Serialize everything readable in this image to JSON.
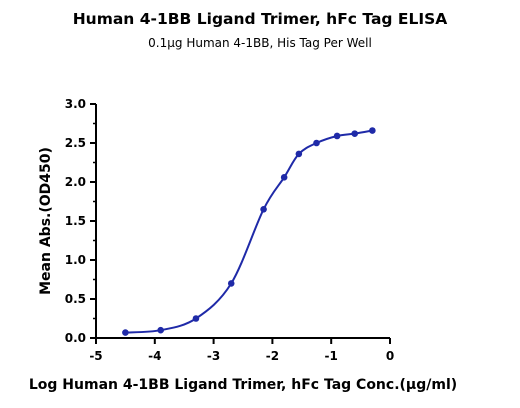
{
  "chart_data": {
    "type": "line",
    "title": "Human 4-1BB Ligand Trimer, hFc Tag ELISA",
    "subtitle": "0.1μg Human 4-1BB, His Tag Per Well",
    "xlabel": "Log Human 4-1BB Ligand Trimer, hFc Tag Conc.(μg/ml)",
    "ylabel": "Mean Abs.(OD450)",
    "xlim": [
      -5,
      0
    ],
    "ylim": [
      0,
      3.0
    ],
    "x_ticks": [
      "-5",
      "-4",
      "-3",
      "-2",
      "-1",
      "0"
    ],
    "y_ticks": [
      "0.0",
      "0.5",
      "1.0",
      "1.5",
      "2.0",
      "2.5",
      "3.0"
    ],
    "grid": false,
    "series": [
      {
        "color": "#1f2aa8",
        "x": [
          -4.5,
          -3.9,
          -3.3,
          -2.7,
          -2.15,
          -1.8,
          -1.55,
          -1.25,
          -0.9,
          -0.6,
          -0.3
        ],
        "y": [
          0.07,
          0.1,
          0.25,
          0.7,
          1.65,
          2.06,
          2.36,
          2.5,
          2.59,
          2.62,
          2.66
        ]
      }
    ]
  }
}
